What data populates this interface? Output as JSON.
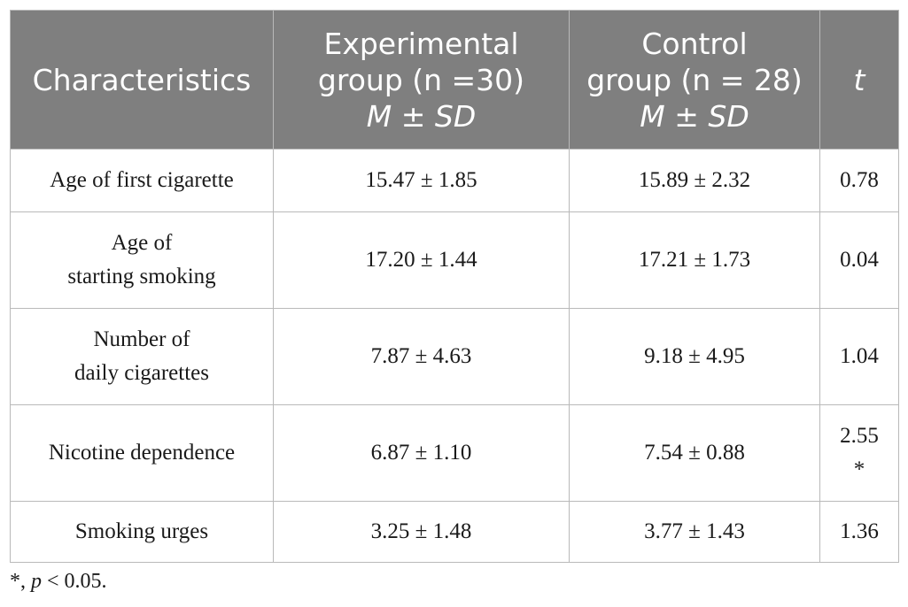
{
  "table": {
    "headers": {
      "characteristics": "Characteristics",
      "experimental": {
        "line1": "Experimental",
        "line2": "group (n =30)",
        "stat": "M ± SD"
      },
      "control": {
        "line1": "Control",
        "line2": "group (n = 28)",
        "stat": "M ± SD"
      },
      "t": "t"
    },
    "rows": [
      {
        "label_lines": [
          "Age of first cigarette"
        ],
        "experimental": "15.47 ± 1.85",
        "control": "15.89 ± 2.32",
        "t": "0.78",
        "t_mark": ""
      },
      {
        "label_lines": [
          "Age of",
          "starting smoking"
        ],
        "experimental": "17.20 ± 1.44",
        "control": "17.21 ± 1.73",
        "t": "0.04",
        "t_mark": ""
      },
      {
        "label_lines": [
          "Number of",
          "daily cigarettes"
        ],
        "experimental": "7.87 ± 4.63",
        "control": "9.18 ± 4.95",
        "t": "1.04",
        "t_mark": ""
      },
      {
        "label_lines": [
          "Nicotine dependence"
        ],
        "experimental": "6.87 ± 1.10",
        "control": "7.54 ± 0.88",
        "t": "2.55",
        "t_mark": "*"
      },
      {
        "label_lines": [
          "Smoking urges"
        ],
        "experimental": "3.25 ± 1.48",
        "control": "3.77 ± 1.43",
        "t": "1.36",
        "t_mark": ""
      }
    ]
  },
  "footnote": {
    "mark": "*, ",
    "p": "p",
    "rest": " < 0.05."
  },
  "colors": {
    "header_bg": "#7f7f7f",
    "header_text": "#ffffff",
    "border": "#b9b9b9"
  }
}
